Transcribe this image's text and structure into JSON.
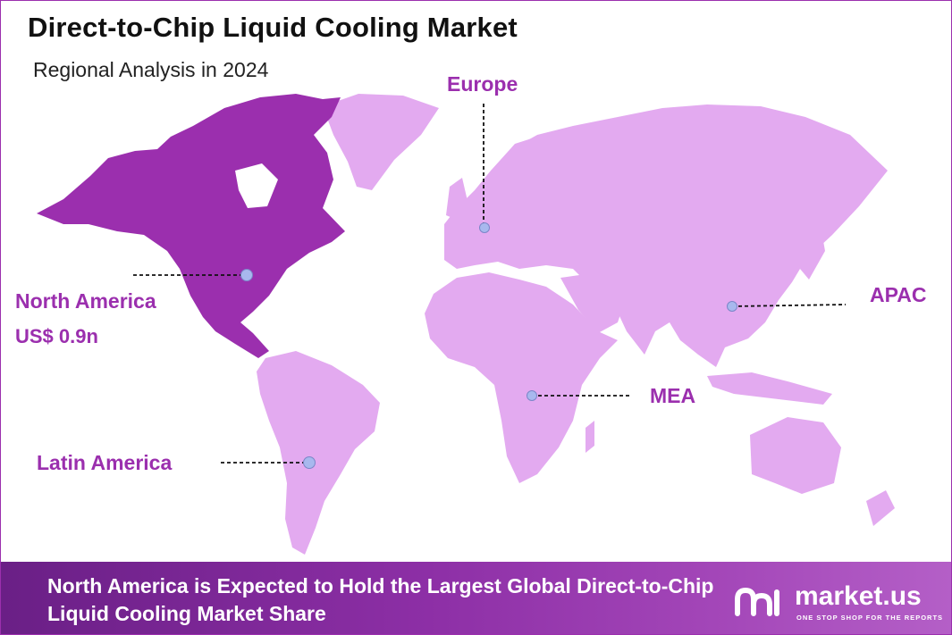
{
  "header": {
    "title": "Direct-to-Chip Liquid Cooling Market",
    "subtitle": "Regional Analysis in 2024"
  },
  "regions": {
    "north_america": {
      "label": "North America",
      "value": "US$ 0.9n",
      "highlight": true
    },
    "europe": {
      "label": "Europe"
    },
    "apac": {
      "label": "APAC"
    },
    "mea": {
      "label": "MEA"
    },
    "latin_america": {
      "label": "Latin America"
    }
  },
  "footer": {
    "text": "North America is Expected to Hold the Largest Global Direct-to-Chip Liquid Cooling Market Share",
    "brand": "market.us",
    "tagline": "ONE STOP SHOP FOR THE REPORTS"
  },
  "colors": {
    "highlight": "#9b2fae",
    "land": "#e3aaf0",
    "marker": "#a8b8ee",
    "footer": "#8d2fa6"
  },
  "icons": [
    "marker-dot-icon",
    "market-us-logo-icon"
  ]
}
